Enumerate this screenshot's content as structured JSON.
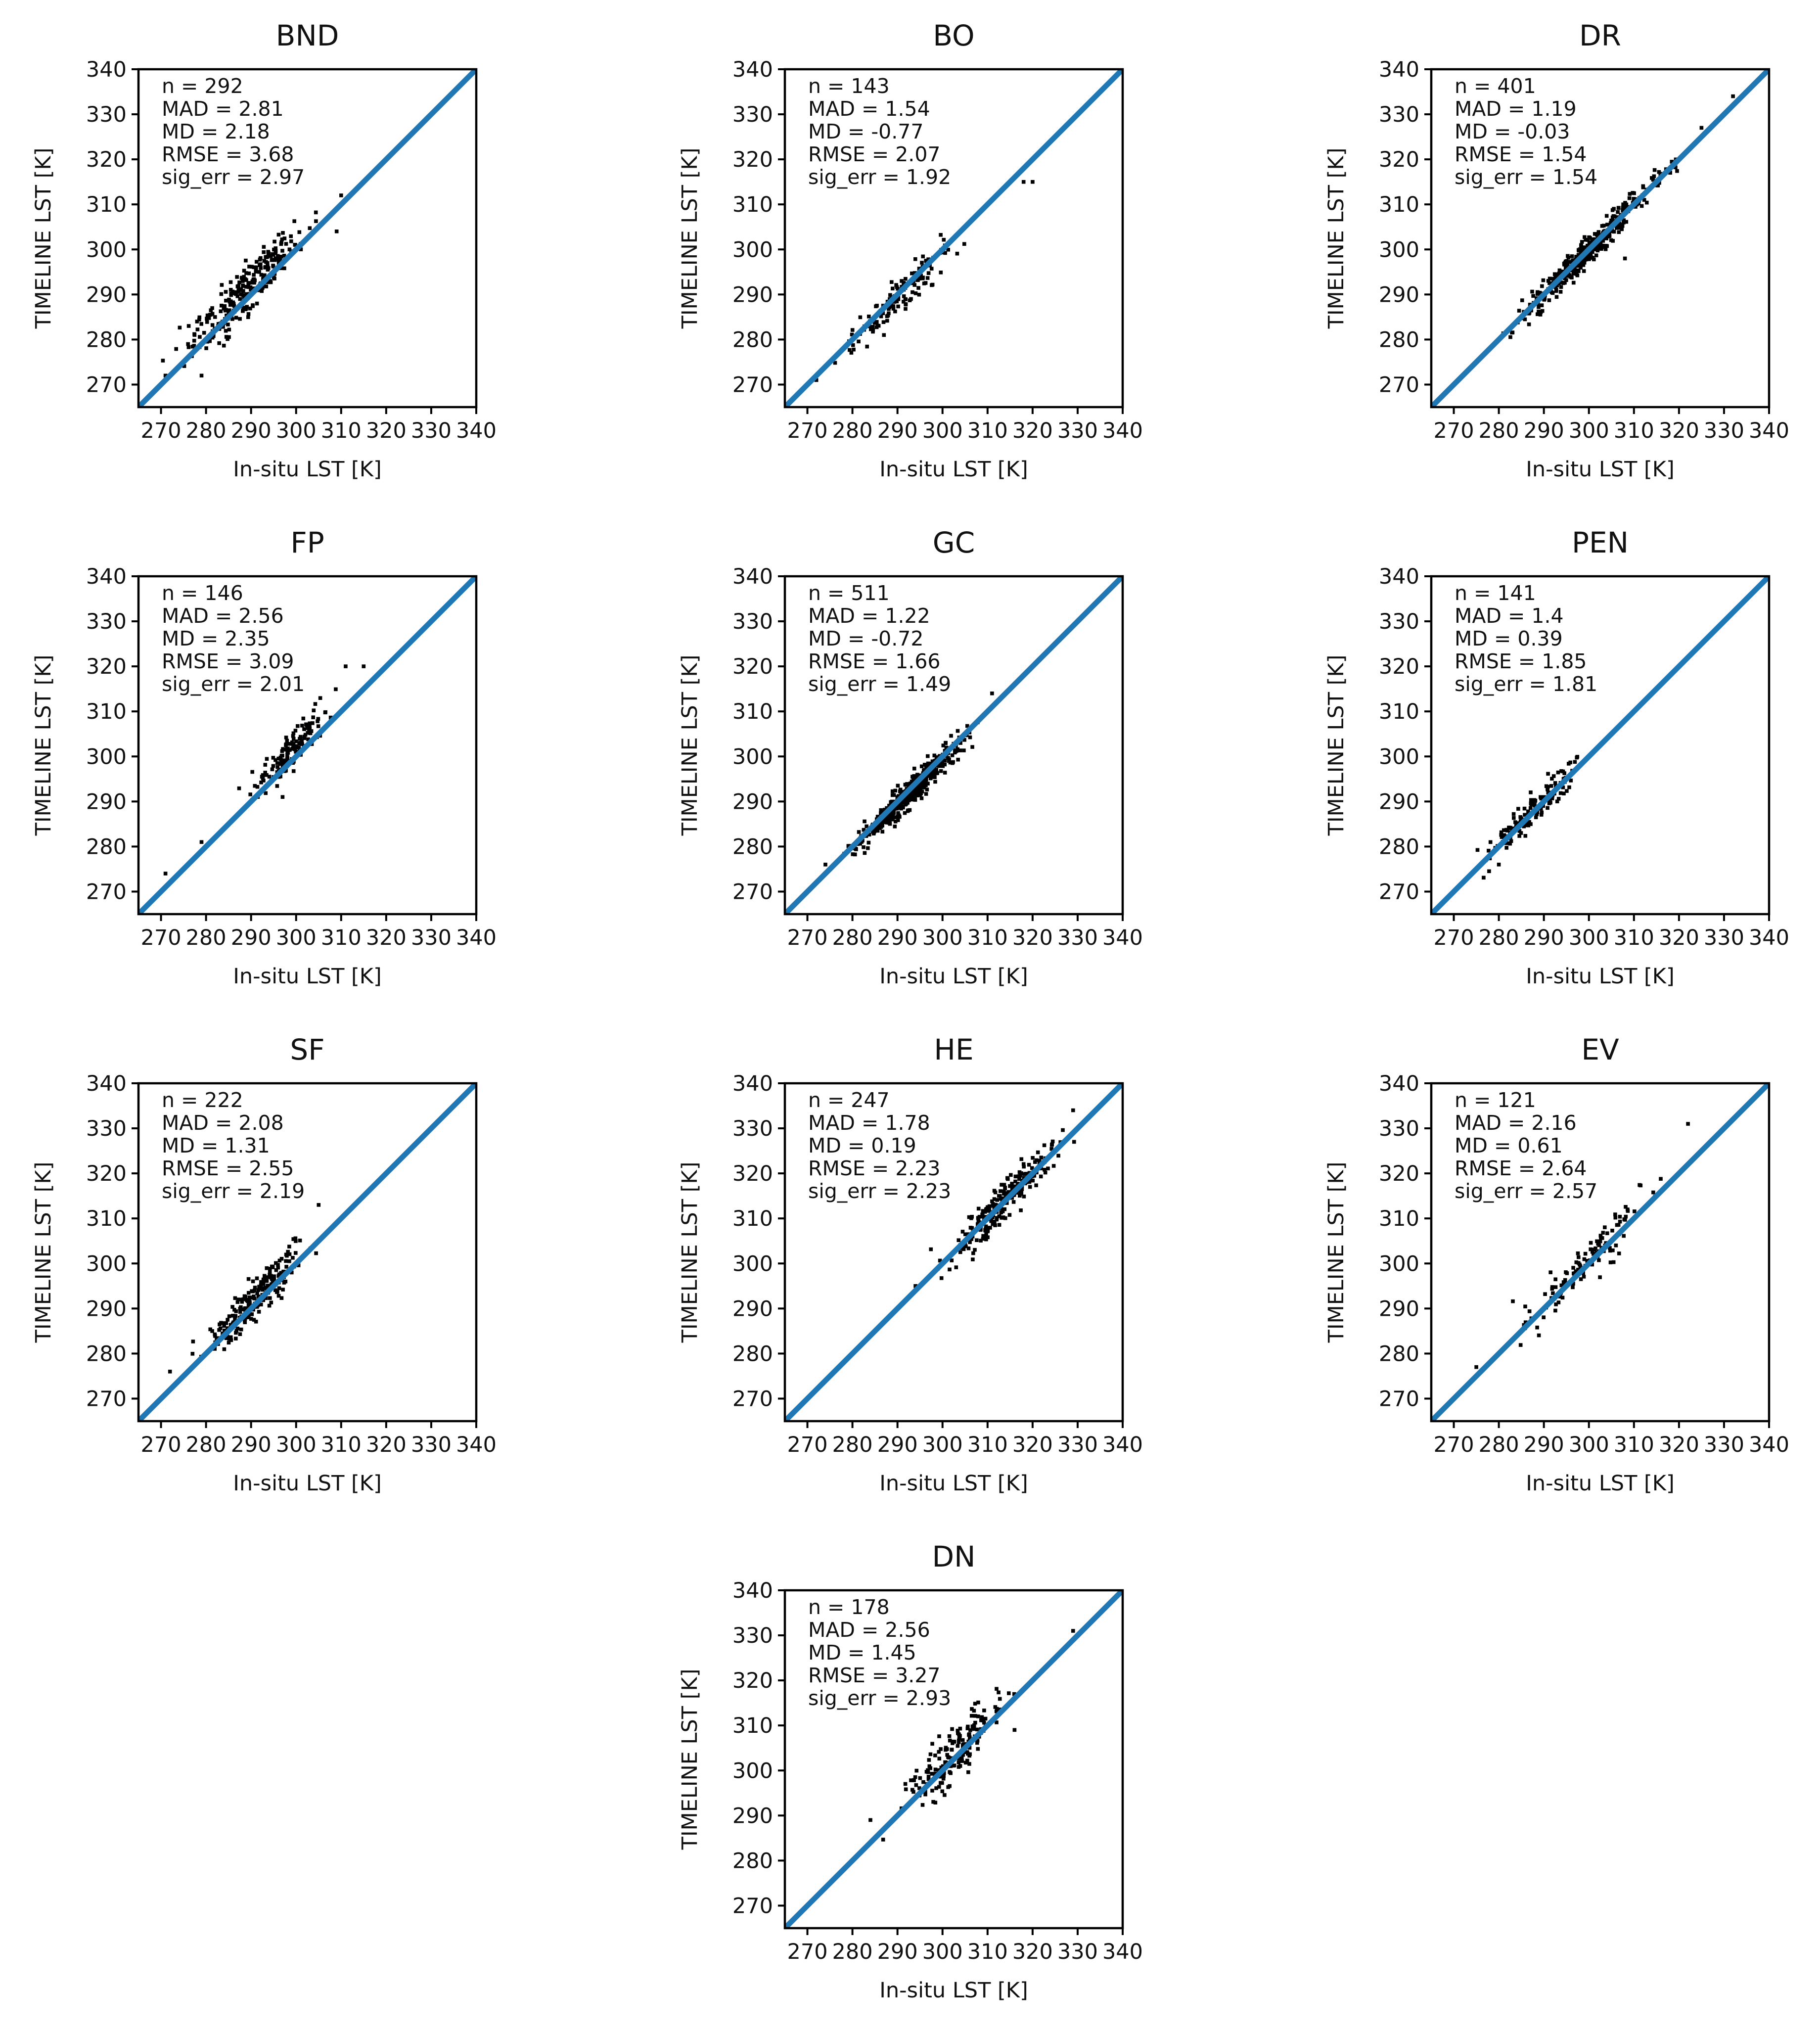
{
  "figure": {
    "panels_order": [
      "BND",
      "BO",
      "DR",
      "FP",
      "GC",
      "PEN",
      "SF",
      "HE",
      "EV",
      "DN"
    ]
  },
  "chart_data": [
    {
      "type": "scatter",
      "title": "BND",
      "xlabel": "In-situ LST [K]",
      "ylabel": "TIMELINE LST [K]",
      "xlim": [
        265,
        340
      ],
      "ylim": [
        265,
        340
      ],
      "xticks": [
        270,
        280,
        290,
        300,
        310,
        320,
        330,
        340
      ],
      "yticks": [
        270,
        280,
        290,
        300,
        310,
        320,
        330,
        340
      ],
      "reference_line": "1:1",
      "reference_color": "#1f77b4",
      "point_color": "#000000",
      "stats": [
        "n = 292",
        "MAD = 2.81",
        "MD = 2.18",
        "RMSE = 3.68",
        "sig_err = 2.97"
      ],
      "cloud": {
        "n": 292,
        "x_range": [
          268,
          310
        ],
        "md": 2.18,
        "spread": 2.97,
        "seed": 11
      },
      "x": [
        271,
        276,
        279,
        278,
        282,
        285,
        310,
        309
      ],
      "y": [
        272,
        279,
        272,
        284,
        285,
        286,
        312,
        304
      ]
    },
    {
      "type": "scatter",
      "title": "BO",
      "xlabel": "In-situ LST [K]",
      "ylabel": "TIMELINE LST [K]",
      "xlim": [
        265,
        340
      ],
      "ylim": [
        265,
        340
      ],
      "xticks": [
        270,
        280,
        290,
        300,
        310,
        320,
        330,
        340
      ],
      "yticks": [
        270,
        280,
        290,
        300,
        310,
        320,
        330,
        340
      ],
      "reference_line": "1:1",
      "reference_color": "#1f77b4",
      "point_color": "#000000",
      "stats": [
        "n = 143",
        "MAD = 1.54",
        "MD = -0.77",
        "RMSE = 2.07",
        "sig_err = 1.92"
      ],
      "cloud": {
        "n": 143,
        "x_range": [
          272,
          310
        ],
        "md": -0.77,
        "spread": 1.92,
        "seed": 23
      },
      "x": [
        272,
        318,
        320,
        287,
        293
      ],
      "y": [
        271,
        315,
        315,
        281,
        289
      ]
    },
    {
      "type": "scatter",
      "title": "DR",
      "xlabel": "In-situ LST [K]",
      "ylabel": "TIMELINE LST [K]",
      "xlim": [
        265,
        340
      ],
      "ylim": [
        265,
        340
      ],
      "xticks": [
        270,
        280,
        290,
        300,
        310,
        320,
        330,
        340
      ],
      "yticks": [
        270,
        280,
        290,
        300,
        310,
        320,
        330,
        340
      ],
      "reference_line": "1:1",
      "reference_color": "#1f77b4",
      "point_color": "#000000",
      "stats": [
        "n = 401",
        "MAD = 1.19",
        "MD = -0.03",
        "RMSE = 1.54",
        "sig_err = 1.54"
      ],
      "cloud": {
        "n": 401,
        "x_range": [
          273,
          327
        ],
        "md": -0.03,
        "spread": 1.54,
        "seed": 37
      },
      "x": [
        332,
        308,
        325
      ],
      "y": [
        334,
        298,
        327
      ]
    },
    {
      "type": "scatter",
      "title": "FP",
      "xlabel": "In-situ LST [K]",
      "ylabel": "TIMELINE LST [K]",
      "xlim": [
        265,
        340
      ],
      "ylim": [
        265,
        340
      ],
      "xticks": [
        270,
        280,
        290,
        300,
        310,
        320,
        330,
        340
      ],
      "yticks": [
        270,
        280,
        290,
        300,
        310,
        320,
        330,
        340
      ],
      "reference_line": "1:1",
      "reference_color": "#1f77b4",
      "point_color": "#000000",
      "stats": [
        "n = 146",
        "MAD = 2.56",
        "MD = 2.35",
        "RMSE = 3.09",
        "sig_err = 2.01"
      ],
      "cloud": {
        "n": 146,
        "x_range": [
          284,
          313
        ],
        "md": 2.35,
        "spread": 2.01,
        "seed": 41
      },
      "x": [
        271,
        279,
        297,
        315,
        311
      ],
      "y": [
        274,
        281,
        291,
        320,
        320
      ]
    },
    {
      "type": "scatter",
      "title": "GC",
      "xlabel": "In-situ LST [K]",
      "ylabel": "TIMELINE LST [K]",
      "xlim": [
        265,
        340
      ],
      "ylim": [
        265,
        340
      ],
      "xticks": [
        270,
        280,
        290,
        300,
        310,
        320,
        330,
        340
      ],
      "yticks": [
        270,
        280,
        290,
        300,
        310,
        320,
        330,
        340
      ],
      "reference_line": "1:1",
      "reference_color": "#1f77b4",
      "point_color": "#000000",
      "stats": [
        "n = 511",
        "MAD = 1.22",
        "MD = -0.72",
        "RMSE = 1.66",
        "sig_err = 1.49"
      ],
      "cloud": {
        "n": 511,
        "x_range": [
          274,
          312
        ],
        "md": -0.72,
        "spread": 1.49,
        "seed": 53
      },
      "x": [
        274,
        311
      ],
      "y": [
        276,
        314
      ]
    },
    {
      "type": "scatter",
      "title": "PEN",
      "xlabel": "In-situ LST [K]",
      "ylabel": "TIMELINE LST [K]",
      "xlim": [
        265,
        340
      ],
      "ylim": [
        265,
        340
      ],
      "xticks": [
        270,
        280,
        290,
        300,
        310,
        320,
        330,
        340
      ],
      "yticks": [
        270,
        280,
        290,
        300,
        310,
        320,
        330,
        340
      ],
      "reference_line": "1:1",
      "reference_color": "#1f77b4",
      "point_color": "#000000",
      "stats": [
        "n = 141",
        "MAD = 1.4",
        "MD = 0.39",
        "RMSE = 1.85",
        "sig_err = 1.81"
      ],
      "cloud": {
        "n": 141,
        "x_range": [
          271,
          304
        ],
        "md": 0.39,
        "spread": 1.81,
        "seed": 67
      },
      "x": [
        271,
        280
      ],
      "y": [
        271,
        276
      ]
    },
    {
      "type": "scatter",
      "title": "SF",
      "xlabel": "In-situ LST [K]",
      "ylabel": "TIMELINE LST [K]",
      "xlim": [
        265,
        340
      ],
      "ylim": [
        265,
        340
      ],
      "xticks": [
        270,
        280,
        290,
        300,
        310,
        320,
        330,
        340
      ],
      "yticks": [
        270,
        280,
        290,
        300,
        310,
        320,
        330,
        340
      ],
      "reference_line": "1:1",
      "reference_color": "#1f77b4",
      "point_color": "#000000",
      "stats": [
        "n = 222",
        "MAD = 2.08",
        "MD = 1.31",
        "RMSE = 2.55",
        "sig_err = 2.19"
      ],
      "cloud": {
        "n": 222,
        "x_range": [
          272,
          310
        ],
        "md": 1.31,
        "spread": 2.19,
        "seed": 79
      },
      "x": [
        272,
        305
      ],
      "y": [
        276,
        313
      ]
    },
    {
      "type": "scatter",
      "title": "HE",
      "xlabel": "In-situ LST [K]",
      "ylabel": "TIMELINE LST [K]",
      "xlim": [
        265,
        340
      ],
      "ylim": [
        265,
        340
      ],
      "xticks": [
        270,
        280,
        290,
        300,
        310,
        320,
        330,
        340
      ],
      "yticks": [
        270,
        280,
        290,
        300,
        310,
        320,
        330,
        340
      ],
      "reference_line": "1:1",
      "reference_color": "#1f77b4",
      "point_color": "#000000",
      "stats": [
        "n = 247",
        "MAD = 1.78",
        "MD = 0.19",
        "RMSE = 2.23",
        "sig_err = 2.23"
      ],
      "cloud": {
        "n": 247,
        "x_range": [
          294,
          333
        ],
        "md": 0.19,
        "spread": 2.23,
        "seed": 83
      },
      "x": [
        294,
        329
      ],
      "y": [
        295,
        334
      ]
    },
    {
      "type": "scatter",
      "title": "EV",
      "xlabel": "In-situ LST [K]",
      "ylabel": "TIMELINE LST [K]",
      "xlim": [
        265,
        340
      ],
      "ylim": [
        265,
        340
      ],
      "xticks": [
        270,
        280,
        290,
        300,
        310,
        320,
        330,
        340
      ],
      "yticks": [
        270,
        280,
        290,
        300,
        310,
        320,
        330,
        340
      ],
      "reference_line": "1:1",
      "reference_color": "#1f77b4",
      "point_color": "#000000",
      "stats": [
        "n = 121",
        "MAD = 2.16",
        "MD = 0.61",
        "RMSE = 2.64",
        "sig_err = 2.57"
      ],
      "cloud": {
        "n": 121,
        "x_range": [
          276,
          322
        ],
        "md": 0.61,
        "spread": 2.57,
        "seed": 97
      },
      "x": [
        275,
        322,
        306
      ],
      "y": [
        277,
        331,
        304
      ]
    },
    {
      "type": "scatter",
      "title": "DN",
      "xlabel": "In-situ LST [K]",
      "ylabel": "TIMELINE LST [K]",
      "xlim": [
        265,
        340
      ],
      "ylim": [
        265,
        340
      ],
      "xticks": [
        270,
        280,
        290,
        300,
        310,
        320,
        330,
        340
      ],
      "yticks": [
        270,
        280,
        290,
        300,
        310,
        320,
        330,
        340
      ],
      "reference_line": "1:1",
      "reference_color": "#1f77b4",
      "point_color": "#000000",
      "stats": [
        "n = 178",
        "MAD = 2.56",
        "MD = 1.45",
        "RMSE = 3.27",
        "sig_err = 2.93"
      ],
      "cloud": {
        "n": 178,
        "x_range": [
          284,
          322
        ],
        "md": 1.45,
        "spread": 2.93,
        "seed": 101
      },
      "x": [
        329,
        284,
        316
      ],
      "y": [
        331,
        289,
        309
      ]
    }
  ]
}
